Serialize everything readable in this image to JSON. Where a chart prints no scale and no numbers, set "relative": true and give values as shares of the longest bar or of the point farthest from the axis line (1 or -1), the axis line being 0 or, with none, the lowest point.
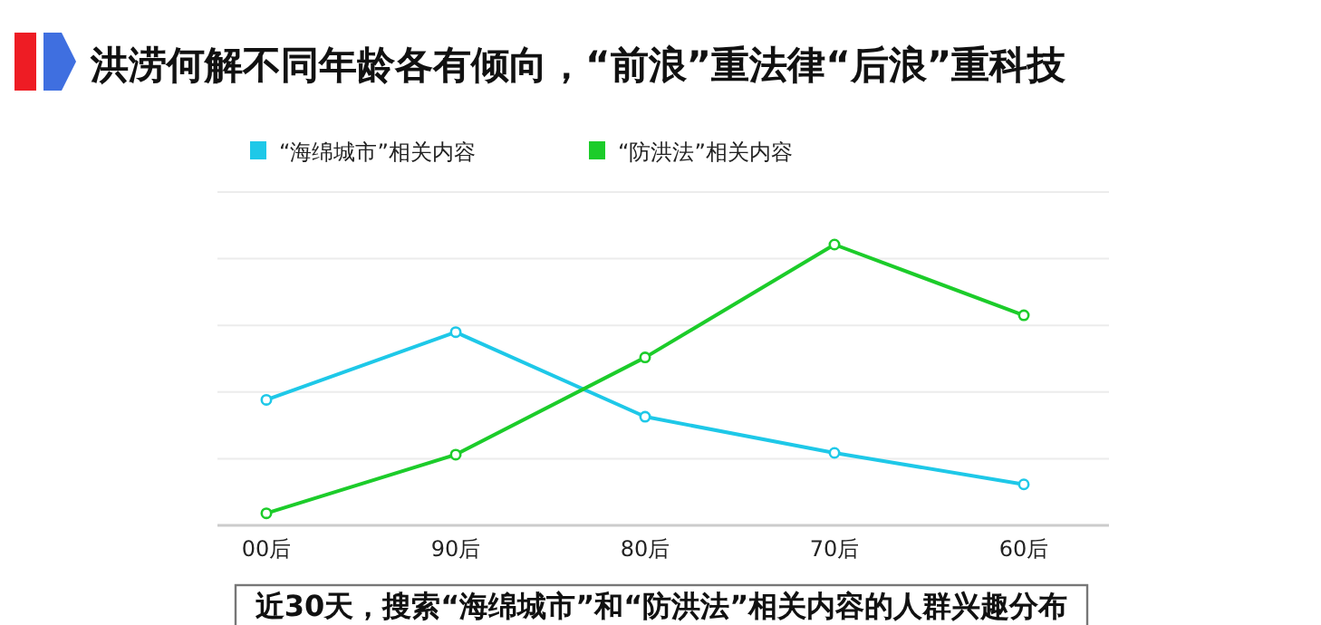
{
  "chart_data": {
    "type": "line",
    "title": "洪涝何解不同年龄各有倾向，“前浪”重法律“后浪”重科技",
    "categories": [
      "00后",
      "90后",
      "80后",
      "70后",
      "60后"
    ],
    "series": [
      {
        "name": "“海绵城市”相关内容",
        "color": "#1ec8e8",
        "values": [
          0.447,
          0.688,
          0.387,
          0.258,
          0.146
        ]
      },
      {
        "name": "“防洪法”相关内容",
        "color": "#1ccc2a",
        "values": [
          0.043,
          0.252,
          0.598,
          1,
          0.748
        ]
      }
    ],
    "relative": true,
    "grid": "y",
    "legend": "top",
    "marker": "circle",
    "line_style": "solid",
    "annotations": [
      "近30天，搜索“海绵城市”和“防洪法”相关内容的人群兴趣分布"
    ]
  }
}
